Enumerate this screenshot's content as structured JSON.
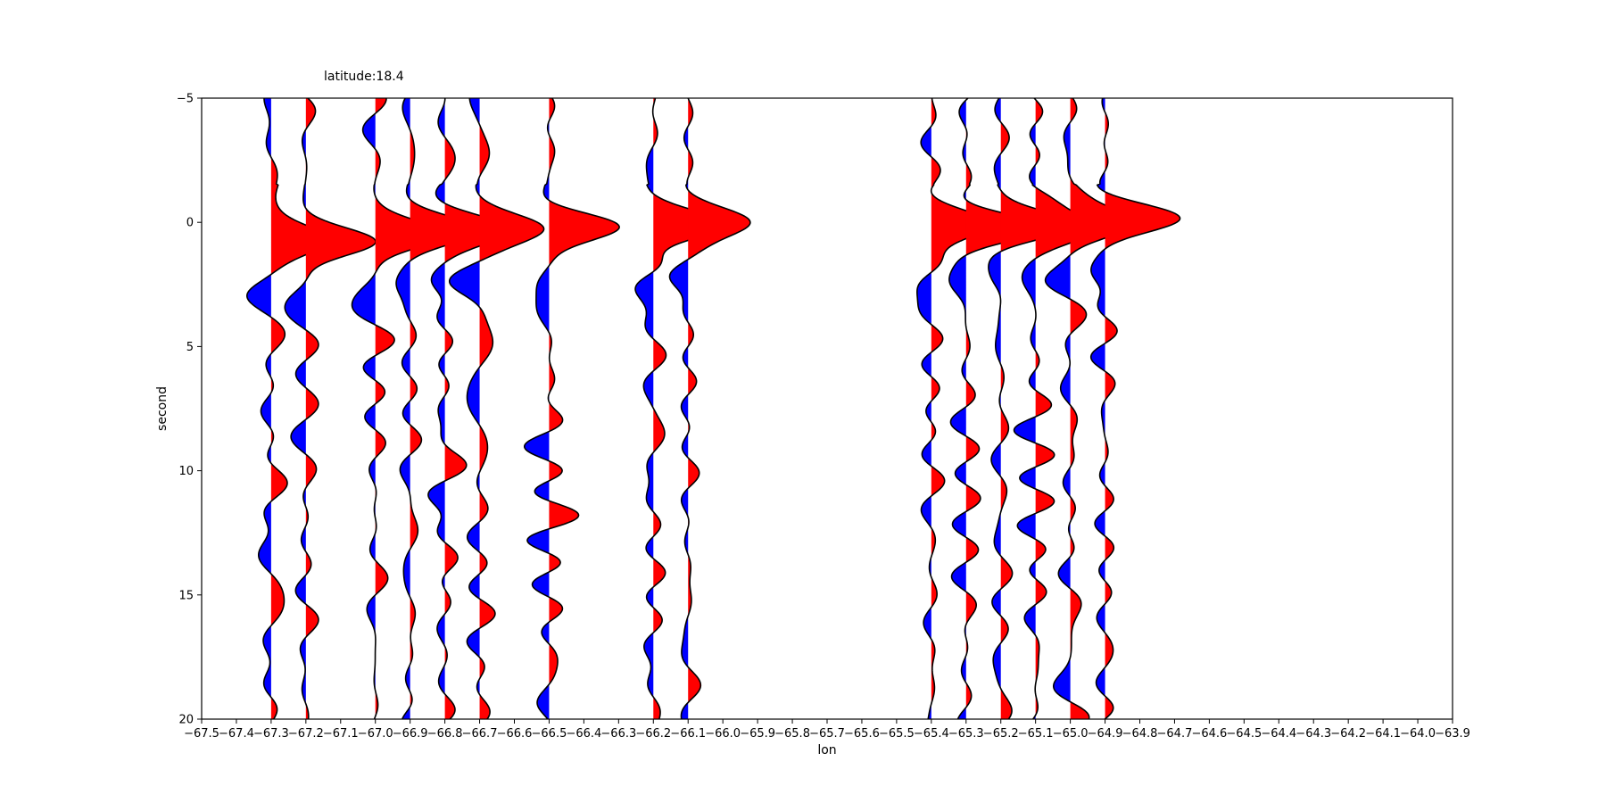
{
  "chart_data": {
    "type": "wiggle",
    "title": "latitude:18.4",
    "xlabel": "lon",
    "ylabel": "second",
    "xlim": [
      -67.5,
      -63.9
    ],
    "ylim": [
      20,
      -5
    ],
    "y_inverted": true,
    "x_ticks": [
      "-67.5",
      "-67.4",
      "-67.3",
      "-67.2",
      "-67.1",
      "-67.0",
      "-66.9",
      "-66.8",
      "-66.7",
      "-66.6",
      "-66.5",
      "-66.4",
      "-66.3",
      "-66.2",
      "-66.1",
      "-66.0",
      "-65.9",
      "-65.8",
      "-65.7",
      "-65.6",
      "-65.5",
      "-65.4",
      "-65.3",
      "-65.2",
      "-65.1",
      "-65.0",
      "-64.9",
      "-64.8",
      "-64.7",
      "-64.6",
      "-64.5",
      "-64.4",
      "-64.3",
      "-64.2",
      "-64.1",
      "-64.0",
      "-63.9"
    ],
    "y_ticks": [
      "-5",
      "0",
      "5",
      "10",
      "15",
      "20"
    ],
    "grid": false,
    "positive_fill_color": "#ff0000",
    "negative_fill_color": "#0000ff",
    "line_color": "#000000",
    "trace_amplitude_scale_lon": 0.2,
    "traces": [
      {
        "lon": -67.3,
        "peak_time": 0.7,
        "peak_amp": 0.19
      },
      {
        "lon": -67.2,
        "peak_time": 0.8,
        "peak_amp": 0.19
      },
      {
        "lon": -67.0,
        "peak_time": 0.5,
        "peak_amp": 0.19
      },
      {
        "lon": -66.9,
        "peak_time": 0.3,
        "peak_amp": 0.19
      },
      {
        "lon": -66.8,
        "peak_time": 0.3,
        "peak_amp": 0.19
      },
      {
        "lon": -66.7,
        "peak_time": 0.2,
        "peak_amp": 0.19
      },
      {
        "lon": -66.5,
        "peak_time": 0.1,
        "peak_amp": 0.19
      },
      {
        "lon": -66.2,
        "peak_time": 0.2,
        "peak_amp": 0.19
      },
      {
        "lon": -66.1,
        "peak_time": 0.0,
        "peak_amp": 0.19
      },
      {
        "lon": -65.4,
        "peak_time": 0.2,
        "peak_amp": 0.19
      },
      {
        "lon": -65.3,
        "peak_time": 0.2,
        "peak_amp": 0.19
      },
      {
        "lon": -65.2,
        "peak_time": 0.1,
        "peak_amp": 0.19
      },
      {
        "lon": -65.1,
        "peak_time": 0.2,
        "peak_amp": 0.19
      },
      {
        "lon": -65.0,
        "peak_time": 0.1,
        "peak_amp": 0.19
      },
      {
        "lon": -64.9,
        "peak_time": -0.1,
        "peak_amp": 0.19
      }
    ]
  }
}
